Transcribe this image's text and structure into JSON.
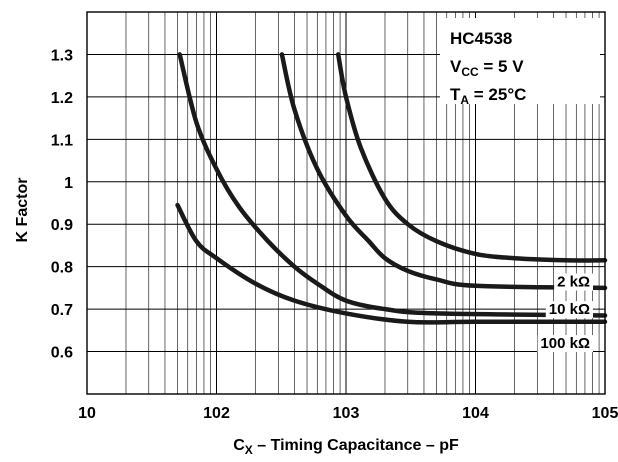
{
  "chart_data": {
    "type": "line",
    "xscale": "log",
    "xlim": [
      10,
      100000
    ],
    "ylim": [
      0.5,
      1.4
    ],
    "grid": true,
    "x_tick_values": [
      10,
      100,
      1000,
      10000,
      100000
    ],
    "x_tick_labels": [
      {
        "base": "10",
        "exp": ""
      },
      {
        "base": "10",
        "exp": "2"
      },
      {
        "base": "10",
        "exp": "3"
      },
      {
        "base": "10",
        "exp": "4"
      },
      {
        "base": "10",
        "exp": "5"
      }
    ],
    "y_ticks": [
      0.6,
      0.7,
      0.8,
      0.9,
      1.0,
      1.1,
      1.2,
      1.3
    ],
    "y_tick_labels": [
      "0.6",
      "0.7",
      "0.8",
      "0.9",
      "1",
      "1.1",
      "1.2",
      "1.3"
    ],
    "xlabel": {
      "c": "C",
      "sub": "X",
      "rest": " – Timing Capacitance – pF"
    },
    "ylabel": "K Factor",
    "annotation": {
      "part": "HC4538",
      "vcc": {
        "base": "V",
        "sub": "CC",
        "rest": " = 5 V"
      },
      "ta": {
        "base": "T",
        "sub": "A",
        "rest": " = 25°C"
      }
    },
    "series": [
      {
        "name": "2 kΩ",
        "x": [
          870,
          1000,
          1300,
          2000,
          3000,
          5000,
          10000,
          20000,
          50000,
          100000
        ],
        "y": [
          1.3,
          1.2,
          1.08,
          0.96,
          0.9,
          0.86,
          0.83,
          0.82,
          0.815,
          0.815
        ]
      },
      {
        "name": "10 kΩ",
        "x": [
          320,
          400,
          600,
          1000,
          1500,
          2000,
          3000,
          5000,
          10000,
          100000
        ],
        "y": [
          1.3,
          1.17,
          1.03,
          0.92,
          0.86,
          0.82,
          0.79,
          0.77,
          0.755,
          0.75
        ]
      },
      {
        "name": "100 kΩ",
        "x": [
          52,
          70,
          100,
          150,
          250,
          400,
          600,
          1000,
          2000,
          5000,
          100000
        ],
        "y": [
          1.3,
          1.14,
          1.03,
          0.94,
          0.86,
          0.8,
          0.76,
          0.72,
          0.7,
          0.69,
          0.685
        ]
      },
      {
        "name": "",
        "x": [
          50,
          70,
          100,
          200,
          400,
          1000,
          3000,
          10000,
          100000
        ],
        "y": [
          0.945,
          0.86,
          0.82,
          0.76,
          0.72,
          0.69,
          0.67,
          0.67,
          0.67
        ]
      }
    ]
  }
}
